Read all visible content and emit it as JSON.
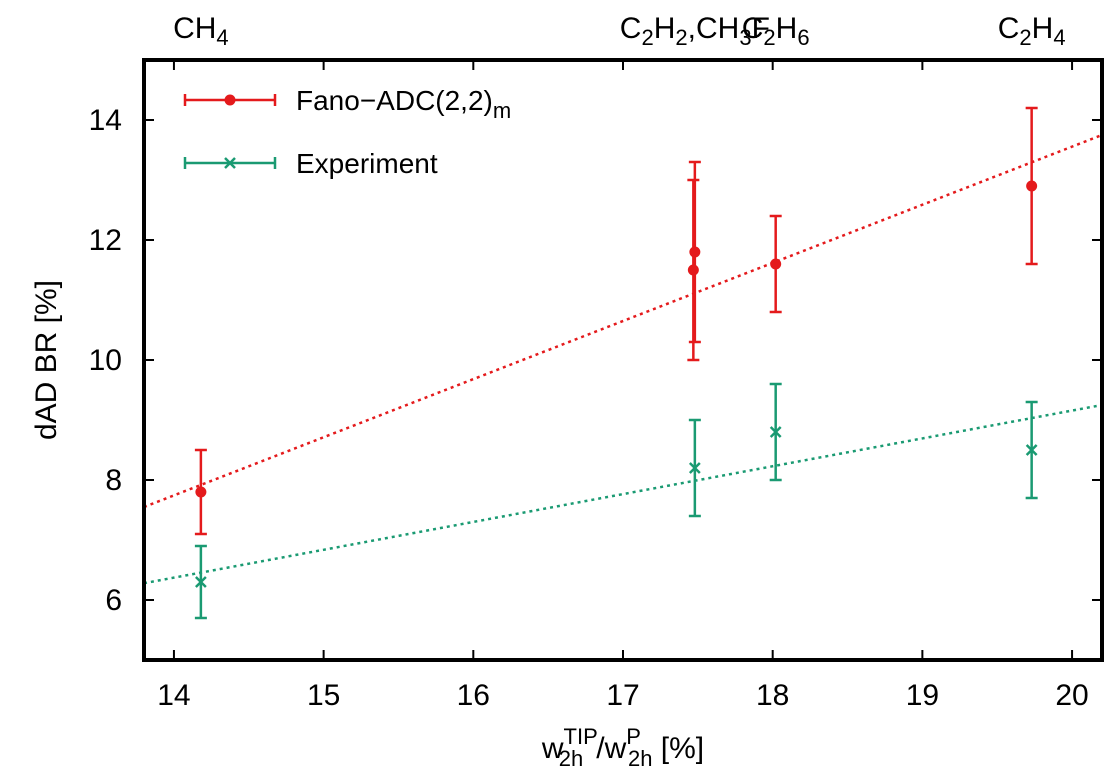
{
  "chart_data": {
    "type": "scatter",
    "xlabel": {
      "base1": "w",
      "sub1": "2h",
      "sup1": "TIP",
      "sep": "/",
      "base2": "w",
      "sub2": "2h",
      "sup2": "P",
      "unit": "[%]"
    },
    "ylabel": "dAD BR [%]",
    "xlim": [
      13.8,
      20.2
    ],
    "ylim": [
      5.0,
      15.0
    ],
    "xticks": [
      14,
      15,
      16,
      17,
      18,
      19,
      20
    ],
    "yticks": [
      6,
      8,
      10,
      12,
      14
    ],
    "grid": false,
    "legend_position": "top-left",
    "top_labels": [
      {
        "x": 14.18,
        "parts": [
          [
            "CH",
            ""
          ],
          [
            "4",
            "sub"
          ]
        ]
      },
      {
        "x": 17.48,
        "parts": [
          [
            "C",
            ""
          ],
          [
            "2",
            "sub"
          ],
          [
            "H",
            ""
          ],
          [
            "2",
            "sub"
          ],
          [
            ",CH",
            ""
          ],
          [
            "3",
            "sub"
          ],
          [
            "F",
            ""
          ]
        ]
      },
      {
        "x": 18.02,
        "parts": [
          [
            "C",
            ""
          ],
          [
            "2",
            "sub"
          ],
          [
            "H",
            ""
          ],
          [
            "6",
            "sub"
          ]
        ]
      },
      {
        "x": 19.73,
        "parts": [
          [
            "C",
            ""
          ],
          [
            "2",
            "sub"
          ],
          [
            "H",
            ""
          ],
          [
            "4",
            "sub"
          ]
        ]
      }
    ],
    "series": [
      {
        "name": "Fano−ADC(2,2)",
        "name_sub": "m",
        "marker": "circle",
        "color": "#e41a1c",
        "points": [
          {
            "x": 14.18,
            "y": 7.8,
            "ylow": 7.1,
            "yhigh": 8.5
          },
          {
            "x": 17.48,
            "y": 11.8,
            "ylow": 10.3,
            "yhigh": 13.3
          },
          {
            "x": 17.47,
            "y": 11.5,
            "ylow": 10.0,
            "yhigh": 13.0
          },
          {
            "x": 18.02,
            "y": 11.6,
            "ylow": 10.8,
            "yhigh": 12.4
          },
          {
            "x": 19.73,
            "y": 12.9,
            "ylow": 11.6,
            "yhigh": 14.2
          }
        ],
        "fit": {
          "x0": 13.8,
          "y0": 7.55,
          "x1": 20.2,
          "y1": 13.75
        }
      },
      {
        "name": "Experiment",
        "marker": "cross",
        "color": "#1a9a72",
        "points": [
          {
            "x": 14.18,
            "y": 6.3,
            "ylow": 5.7,
            "yhigh": 6.9
          },
          {
            "x": 17.48,
            "y": 8.2,
            "ylow": 7.4,
            "yhigh": 9.0
          },
          {
            "x": 18.02,
            "y": 8.8,
            "ylow": 8.0,
            "yhigh": 9.6
          },
          {
            "x": 19.73,
            "y": 8.5,
            "ylow": 7.7,
            "yhigh": 9.3
          }
        ],
        "fit": {
          "x0": 13.8,
          "y0": 6.28,
          "x1": 20.2,
          "y1": 9.25
        }
      }
    ]
  }
}
